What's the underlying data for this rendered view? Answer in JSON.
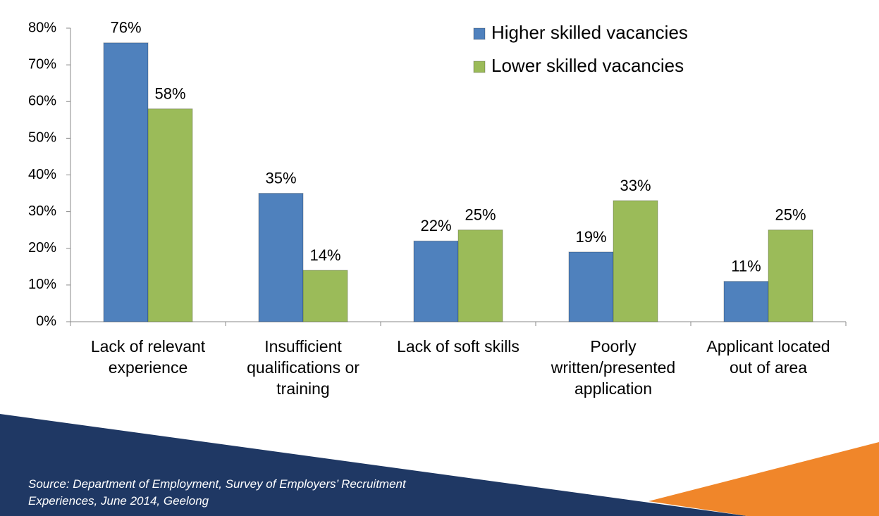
{
  "chart_data": {
    "type": "bar",
    "categories": [
      "Lack of relevant experience",
      "Insufficient qualifications or training",
      "Lack of soft skills",
      "Poorly written/presented application",
      "Applicant located out of area"
    ],
    "series": [
      {
        "name": "Higher skilled vacancies",
        "color": "#4f81bd",
        "values": [
          76,
          35,
          22,
          19,
          11
        ],
        "value_labels": [
          "76%",
          "35%",
          "22%",
          "19%",
          "11%"
        ]
      },
      {
        "name": "Lower skilled vacancies",
        "color": "#9bbb59",
        "values": [
          58,
          14,
          25,
          33,
          25
        ],
        "value_labels": [
          "58%",
          "14%",
          "25%",
          "33%",
          "25%"
        ]
      }
    ],
    "ylim": [
      0,
      80
    ],
    "yticks": [
      {
        "value": 0,
        "label": "0%"
      },
      {
        "value": 10,
        "label": "10%"
      },
      {
        "value": 20,
        "label": "20%"
      },
      {
        "value": 30,
        "label": "30%"
      },
      {
        "value": 40,
        "label": "40%"
      },
      {
        "value": 50,
        "label": "50%"
      },
      {
        "value": 60,
        "label": "60%"
      },
      {
        "value": 70,
        "label": "70%"
      },
      {
        "value": 80,
        "label": "80%"
      }
    ],
    "legend": "upper right",
    "source": "Source: Department of Employment, Survey of Employers’ Recruitment Experiences, June 2014, Geelong"
  }
}
